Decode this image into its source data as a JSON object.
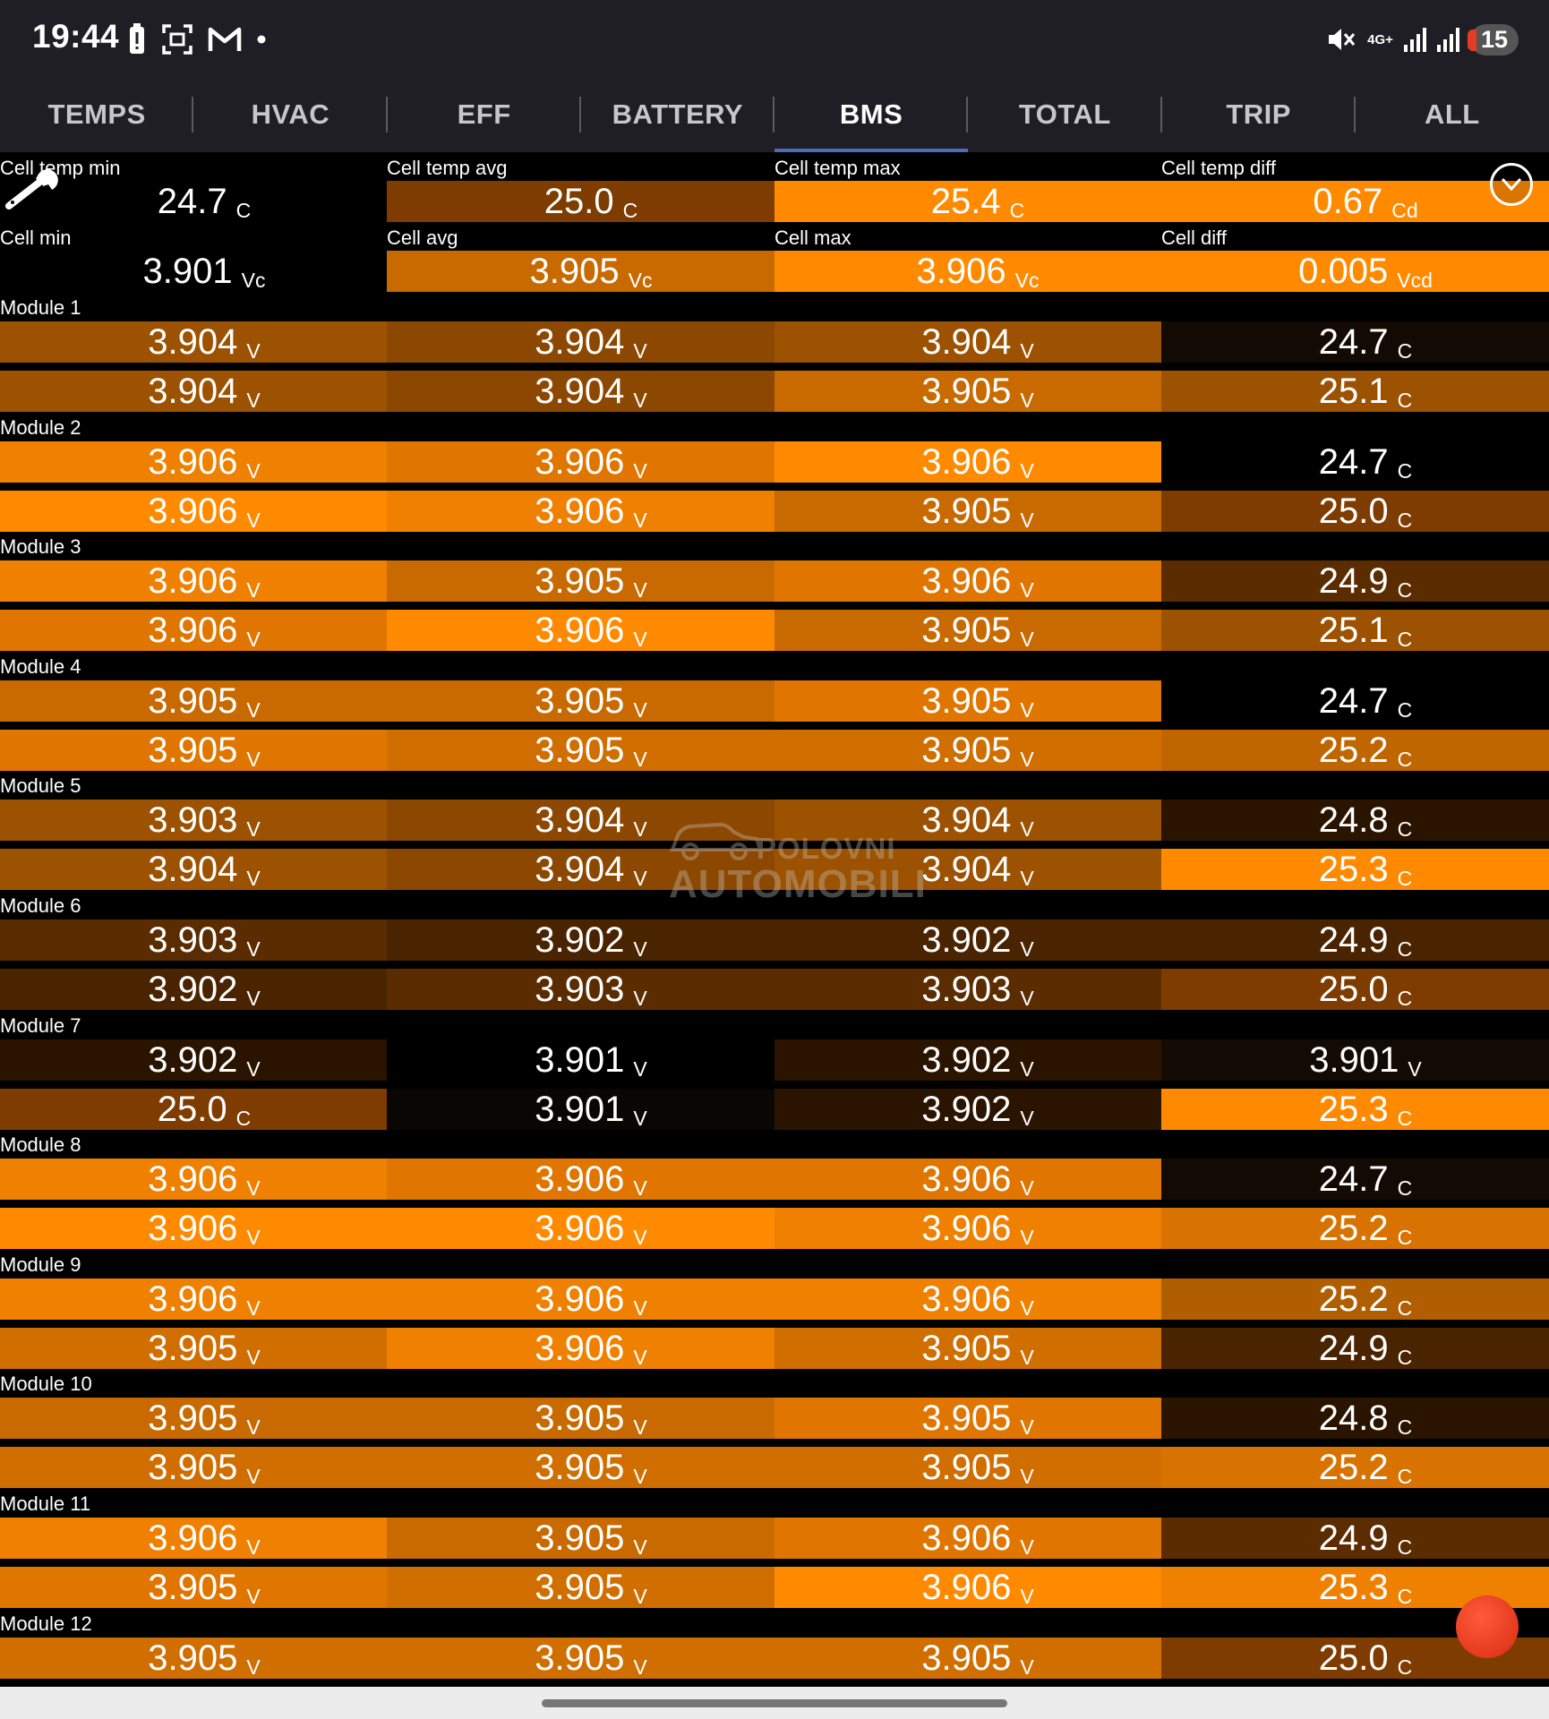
{
  "status_bar": {
    "time": "19:44",
    "network": "4G+",
    "notification_count": "15"
  },
  "tabs": [
    {
      "label": "TEMPS",
      "active": false
    },
    {
      "label": "HVAC",
      "active": false
    },
    {
      "label": "EFF",
      "active": false
    },
    {
      "label": "BATTERY",
      "active": false
    },
    {
      "label": "BMS",
      "active": true
    },
    {
      "label": "TOTAL",
      "active": false
    },
    {
      "label": "TRIP",
      "active": false
    },
    {
      "label": "ALL",
      "active": false
    }
  ],
  "summary": {
    "temp": [
      {
        "label": "Cell temp min",
        "value": "24.7",
        "unit": "C",
        "color": "#000000"
      },
      {
        "label": "Cell temp avg",
        "value": "25.0",
        "unit": "C",
        "color": "#7e3c00"
      },
      {
        "label": "Cell temp max",
        "value": "25.4",
        "unit": "C",
        "color": "#ff8a00"
      },
      {
        "label": "Cell temp diff",
        "value": "0.67",
        "unit": "Cd",
        "color": "#ff8a00"
      }
    ],
    "cell": [
      {
        "label": "Cell min",
        "value": "3.901",
        "unit": "Vc",
        "color": "#000000"
      },
      {
        "label": "Cell avg",
        "value": "3.905",
        "unit": "Vc",
        "color": "#c86a00"
      },
      {
        "label": "Cell max",
        "value": "3.906",
        "unit": "Vc",
        "color": "#ff8a00"
      },
      {
        "label": "Cell diff",
        "value": "0.005",
        "unit": "Vcd",
        "color": "#ff8a00"
      }
    ]
  },
  "modules": [
    {
      "label": "Module 1",
      "rows": [
        [
          {
            "v": "3.904",
            "u": "V",
            "c": "#9c5200"
          },
          {
            "v": "3.904",
            "u": "V",
            "c": "#8c4800"
          },
          {
            "v": "3.904",
            "u": "V",
            "c": "#9c5200"
          },
          {
            "v": "24.7",
            "u": "C",
            "c": "#140a04"
          }
        ],
        [
          {
            "v": "3.904",
            "u": "V",
            "c": "#9c5200"
          },
          {
            "v": "3.904",
            "u": "V",
            "c": "#8c4800"
          },
          {
            "v": "3.905",
            "u": "V",
            "c": "#c86a00"
          },
          {
            "v": "25.1",
            "u": "C",
            "c": "#9c5200"
          }
        ]
      ]
    },
    {
      "label": "Module 2",
      "rows": [
        [
          {
            "v": "3.906",
            "u": "V",
            "c": "#f08000"
          },
          {
            "v": "3.906",
            "u": "V",
            "c": "#e07600"
          },
          {
            "v": "3.906",
            "u": "V",
            "c": "#ff8a00"
          },
          {
            "v": "24.7",
            "u": "C",
            "c": "#000000"
          }
        ],
        [
          {
            "v": "3.906",
            "u": "V",
            "c": "#ff8a00"
          },
          {
            "v": "3.906",
            "u": "V",
            "c": "#f08000"
          },
          {
            "v": "3.905",
            "u": "V",
            "c": "#c86a00"
          },
          {
            "v": "25.0",
            "u": "C",
            "c": "#7e3c00"
          }
        ]
      ]
    },
    {
      "label": "Module 3",
      "rows": [
        [
          {
            "v": "3.906",
            "u": "V",
            "c": "#f08000"
          },
          {
            "v": "3.905",
            "u": "V",
            "c": "#c86a00"
          },
          {
            "v": "3.906",
            "u": "V",
            "c": "#e07600"
          },
          {
            "v": "24.9",
            "u": "C",
            "c": "#5a2c00"
          }
        ],
        [
          {
            "v": "3.906",
            "u": "V",
            "c": "#e07600"
          },
          {
            "v": "3.906",
            "u": "V",
            "c": "#ff8a00"
          },
          {
            "v": "3.905",
            "u": "V",
            "c": "#c86a00"
          },
          {
            "v": "25.1",
            "u": "C",
            "c": "#9c5200"
          }
        ]
      ]
    },
    {
      "label": "Module 4",
      "rows": [
        [
          {
            "v": "3.905",
            "u": "V",
            "c": "#c86a00"
          },
          {
            "v": "3.905",
            "u": "V",
            "c": "#c86a00"
          },
          {
            "v": "3.905",
            "u": "V",
            "c": "#e07600"
          },
          {
            "v": "24.7",
            "u": "C",
            "c": "#000000"
          }
        ],
        [
          {
            "v": "3.905",
            "u": "V",
            "c": "#e07600"
          },
          {
            "v": "3.905",
            "u": "V",
            "c": "#d06e00"
          },
          {
            "v": "3.905",
            "u": "V",
            "c": "#d06e00"
          },
          {
            "v": "25.2",
            "u": "C",
            "c": "#c06600"
          }
        ]
      ]
    },
    {
      "label": "Module 5",
      "rows": [
        [
          {
            "v": "3.903",
            "u": "V",
            "c": "#9c5200"
          },
          {
            "v": "3.904",
            "u": "V",
            "c": "#8c4800"
          },
          {
            "v": "3.904",
            "u": "V",
            "c": "#9c5200"
          },
          {
            "v": "24.8",
            "u": "C",
            "c": "#2a1400"
          }
        ],
        [
          {
            "v": "3.904",
            "u": "V",
            "c": "#9c5200"
          },
          {
            "v": "3.904",
            "u": "V",
            "c": "#8c4800"
          },
          {
            "v": "3.904",
            "u": "V",
            "c": "#9c5200"
          },
          {
            "v": "25.3",
            "u": "C",
            "c": "#ff8a00"
          }
        ]
      ]
    },
    {
      "label": "Module 6",
      "rows": [
        [
          {
            "v": "3.903",
            "u": "V",
            "c": "#5a2c00"
          },
          {
            "v": "3.902",
            "u": "V",
            "c": "#4a2400"
          },
          {
            "v": "3.902",
            "u": "V",
            "c": "#4a2400"
          },
          {
            "v": "24.9",
            "u": "C",
            "c": "#4a2400"
          }
        ],
        [
          {
            "v": "3.902",
            "u": "V",
            "c": "#4a2400"
          },
          {
            "v": "3.903",
            "u": "V",
            "c": "#5a2c00"
          },
          {
            "v": "3.903",
            "u": "V",
            "c": "#5a2c00"
          },
          {
            "v": "25.0",
            "u": "C",
            "c": "#7e3c00"
          }
        ]
      ]
    },
    {
      "label": "Module 7",
      "rows": [
        [
          {
            "v": "3.902",
            "u": "V",
            "c": "#2a1400"
          },
          {
            "v": "3.901",
            "u": "V",
            "c": "#000000"
          },
          {
            "v": "3.902",
            "u": "V",
            "c": "#2a1400"
          },
          {
            "v": "3.901",
            "u": "V",
            "c": "#140a04"
          }
        ],
        [
          {
            "v": "25.0",
            "u": "C",
            "c": "#7e3c00"
          },
          {
            "v": "3.901",
            "u": "V",
            "c": "#0a0604"
          },
          {
            "v": "3.902",
            "u": "V",
            "c": "#2a1400"
          },
          {
            "v": "25.3",
            "u": "C",
            "c": "#ff8a00"
          }
        ]
      ]
    },
    {
      "label": "Module 8",
      "rows": [
        [
          {
            "v": "3.906",
            "u": "V",
            "c": "#f08000"
          },
          {
            "v": "3.906",
            "u": "V",
            "c": "#e07600"
          },
          {
            "v": "3.906",
            "u": "V",
            "c": "#e07600"
          },
          {
            "v": "24.7",
            "u": "C",
            "c": "#140a04"
          }
        ],
        [
          {
            "v": "3.906",
            "u": "V",
            "c": "#ff8a00"
          },
          {
            "v": "3.906",
            "u": "V",
            "c": "#ff8a00"
          },
          {
            "v": "3.906",
            "u": "V",
            "c": "#f08000"
          },
          {
            "v": "25.2",
            "u": "C",
            "c": "#d87200"
          }
        ]
      ]
    },
    {
      "label": "Module 9",
      "rows": [
        [
          {
            "v": "3.906",
            "u": "V",
            "c": "#f08000"
          },
          {
            "v": "3.906",
            "u": "V",
            "c": "#f08000"
          },
          {
            "v": "3.906",
            "u": "V",
            "c": "#f08000"
          },
          {
            "v": "25.2",
            "u": "C",
            "c": "#b05e00"
          }
        ],
        [
          {
            "v": "3.905",
            "u": "V",
            "c": "#d06e00"
          },
          {
            "v": "3.906",
            "u": "V",
            "c": "#f08000"
          },
          {
            "v": "3.905",
            "u": "V",
            "c": "#d06e00"
          },
          {
            "v": "24.9",
            "u": "C",
            "c": "#4a2400"
          }
        ]
      ]
    },
    {
      "label": "Module 10",
      "rows": [
        [
          {
            "v": "3.905",
            "u": "V",
            "c": "#c86a00"
          },
          {
            "v": "3.905",
            "u": "V",
            "c": "#c86a00"
          },
          {
            "v": "3.905",
            "u": "V",
            "c": "#e07600"
          },
          {
            "v": "24.8",
            "u": "C",
            "c": "#2a1400"
          }
        ],
        [
          {
            "v": "3.905",
            "u": "V",
            "c": "#d06e00"
          },
          {
            "v": "3.905",
            "u": "V",
            "c": "#d06e00"
          },
          {
            "v": "3.905",
            "u": "V",
            "c": "#d06e00"
          },
          {
            "v": "25.2",
            "u": "C",
            "c": "#d87200"
          }
        ]
      ]
    },
    {
      "label": "Module 11",
      "rows": [
        [
          {
            "v": "3.906",
            "u": "V",
            "c": "#f08000"
          },
          {
            "v": "3.905",
            "u": "V",
            "c": "#c86a00"
          },
          {
            "v": "3.906",
            "u": "V",
            "c": "#e07600"
          },
          {
            "v": "24.9",
            "u": "C",
            "c": "#5a2c00"
          }
        ],
        [
          {
            "v": "3.905",
            "u": "V",
            "c": "#e07600"
          },
          {
            "v": "3.905",
            "u": "V",
            "c": "#d06e00"
          },
          {
            "v": "3.906",
            "u": "V",
            "c": "#ff8a00"
          },
          {
            "v": "25.3",
            "u": "C",
            "c": "#f08000"
          }
        ]
      ]
    },
    {
      "label": "Module 12",
      "rows": [
        [
          {
            "v": "3.905",
            "u": "V",
            "c": "#d06e00"
          },
          {
            "v": "3.905",
            "u": "V",
            "c": "#d06e00"
          },
          {
            "v": "3.905",
            "u": "V",
            "c": "#d06e00"
          },
          {
            "v": "25.0",
            "u": "C",
            "c": "#7e3c00"
          }
        ]
      ]
    }
  ],
  "watermark": {
    "line1": "POLOVNI",
    "line2": "AUTOMOBILI"
  }
}
